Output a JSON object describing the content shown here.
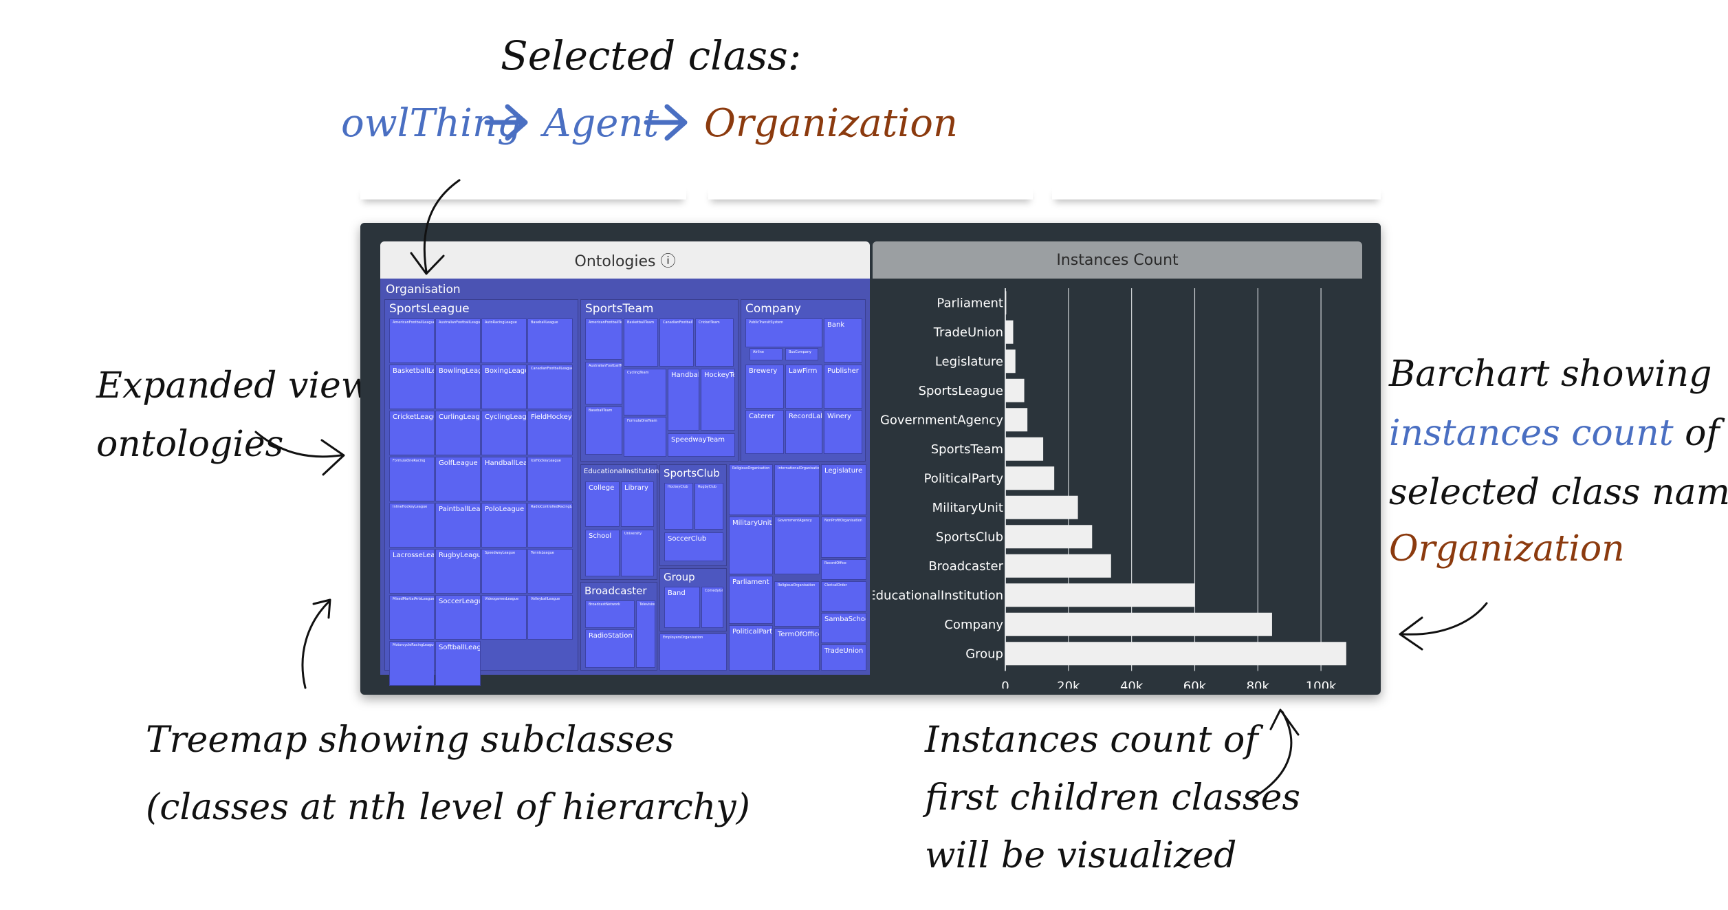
{
  "annotations": {
    "selected_title": "Selected class:",
    "path_1": "owlThing",
    "path_2": "Agent",
    "path_3": "Organization",
    "left_1": "Expanded view of",
    "left_2": "ontologies",
    "right_1": "Barchart showing",
    "right_2a": "instances count",
    "right_2b": "of",
    "right_3": "selected class named",
    "right_4": "Organization",
    "bottom_left_1": "Treemap showing subclasses",
    "bottom_left_2": "(classes at nth level of hierarchy)",
    "bottom_right_1": "Instances count of",
    "bottom_right_2": "first children classes",
    "bottom_right_3": "will be visualized"
  },
  "tabs": {
    "ontologies": "Ontologies ⓘ",
    "instances": "Instances Count"
  },
  "treemap": {
    "root": "Organisation",
    "groups": {
      "sportsleague": "SportsLeague",
      "sportsteam": "SportsTeam",
      "company": "Company",
      "education": "EducationalInstitution",
      "sportsclub": "SportsClub",
      "broadcaster": "Broadcaster",
      "group": "Group"
    },
    "sportsleague_cells": [
      "AmericanFootballLeague",
      "AustralianFootballLeague",
      "AutoRacingLeague",
      "BaseballLeague",
      "BasketballLeague",
      "BowlingLeague",
      "BoxingLeague",
      "CanadianFootballLeague",
      "CricketLeague",
      "CurlingLeague",
      "CyclingLeague",
      "FieldHockeyLeague",
      "FormulaOneRacing",
      "GolfLeague",
      "HandballLeague",
      "IceHockeyLeague",
      "InlineHockeyLeague",
      "PaintballLeague",
      "PoloLeague",
      "RadioControlledRacingLeague",
      "LacrosseLeague",
      "RugbyLeague",
      "SpeedwayLeague",
      "TennisLeague",
      "MixedMartialArtsLeague",
      "SoccerLeague",
      "VideogamesLeague",
      "VolleyballLeague",
      "MotorcycleRacingLeague",
      "SoftballLeague"
    ],
    "sportsteam_cells": [
      "AmericanFootballTeam",
      "BasketballTeam",
      "CanadianFootballTeam",
      "CricketTeam",
      "AustralianFootballTeam",
      "CyclingTeam",
      "HandballTeam",
      "HockeyTeam",
      "BaseballTeam",
      "FormulaOneTeam",
      "SpeedwayTeam"
    ],
    "company_cells": [
      "PublicTransitSystem",
      "Airline",
      "BusCompany",
      "Bank",
      "Brewery",
      "LawFirm",
      "Publisher",
      "Caterer",
      "RecordLabel",
      "Winery"
    ],
    "education_cells": [
      "College",
      "Library",
      "School",
      "University"
    ],
    "sportsclub_cells": [
      "HockeyClub",
      "RugbyClub",
      "SoccerClub"
    ],
    "broadcaster_cells": [
      "BroadcastNetwork",
      "RadioStation",
      "TelevisionStation"
    ],
    "group_cells": [
      "Band",
      "ComedyGroup"
    ],
    "misc_cells": [
      "EmployersOrganisation",
      "ReligiousOrganisation",
      "InternationalOrganisation",
      "Legislature",
      "MilitaryUnit",
      "GovernmentAgency",
      "NonProfitOrganisation",
      "RecordOffice",
      "Parliament",
      "ReligiousOrganisation",
      "ClericalOrder",
      "SambaSchool",
      "PoliticalParty",
      "TermOfOffice",
      "TradeUnion"
    ]
  },
  "chart_data": {
    "type": "bar",
    "orientation": "horizontal",
    "categories": [
      "Parliament",
      "TradeUnion",
      "Legislature",
      "SportsLeague",
      "GovernmentAgency",
      "SportsTeam",
      "PoliticalParty",
      "MilitaryUnit",
      "SportsClub",
      "Broadcaster",
      "EducationalInstitution",
      "Company",
      "Group"
    ],
    "values": [
      300,
      2500,
      3200,
      6000,
      7000,
      12000,
      15500,
      23000,
      27500,
      33500,
      60000,
      84500,
      108000
    ],
    "x_ticks": [
      0,
      20000,
      40000,
      60000,
      80000,
      100000
    ],
    "x_tick_labels": [
      "0",
      "20k",
      "40k",
      "60k",
      "80k",
      "100k"
    ],
    "xlim": [
      0,
      110000
    ],
    "grid": true,
    "colors": {
      "bar": "#efefef",
      "grid": "#cfd3d6",
      "text": "#ffffff",
      "background": "#2b343b"
    }
  }
}
